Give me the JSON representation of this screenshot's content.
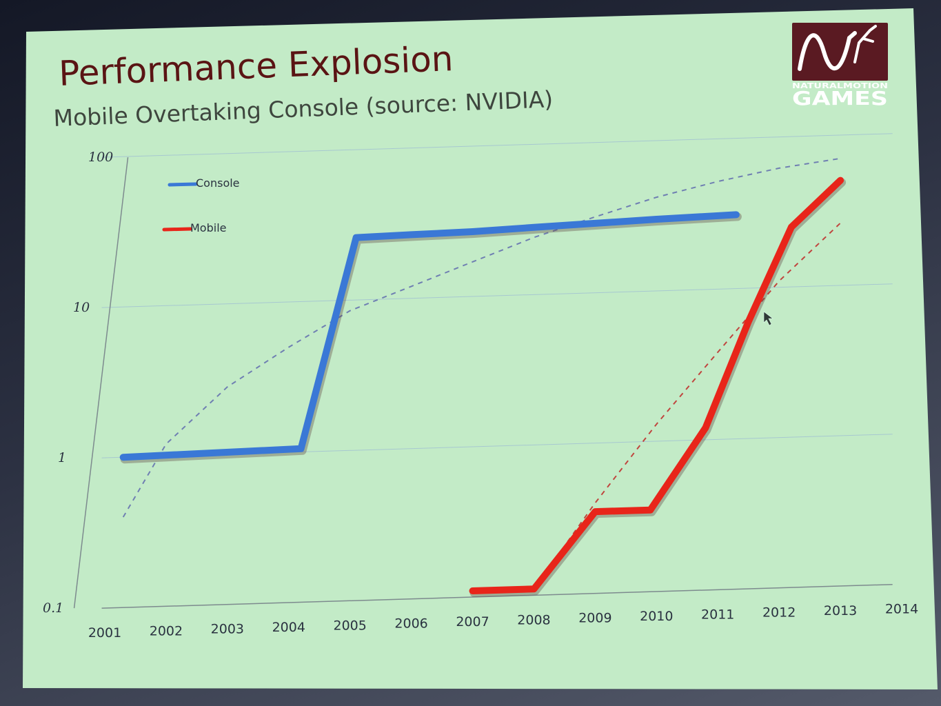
{
  "slide": {
    "title": "Performance Explosion",
    "subtitle": "Mobile Overtaking Console (source: NVIDIA)",
    "logo": {
      "top_text": "NATURALMOTION",
      "bottom_text": "GAMES",
      "icon": "wave-diver-icon",
      "color": "#5a1a22"
    }
  },
  "chart_data": {
    "type": "line",
    "yscale": "log",
    "ylim": [
      0.1,
      100
    ],
    "yticks": [
      "100",
      "10",
      "1",
      "0.1"
    ],
    "xlim": [
      2001,
      2014
    ],
    "categories": [
      "2001",
      "2002",
      "2003",
      "2004",
      "2005",
      "2006",
      "2007",
      "2008",
      "2009",
      "2010",
      "2011",
      "2012",
      "2013",
      "2014"
    ],
    "grid": true,
    "legend_position": "top-left",
    "series": [
      {
        "name": "Console",
        "color": "#3a78d6",
        "points": [
          [
            2001.3,
            1.0
          ],
          [
            2004.2,
            1.05
          ],
          [
            2005.1,
            26
          ],
          [
            2006,
            26.5
          ],
          [
            2007,
            27
          ],
          [
            2008,
            28
          ],
          [
            2009,
            29
          ],
          [
            2010,
            30
          ],
          [
            2011.3,
            31
          ]
        ]
      },
      {
        "name": "Mobile",
        "color": "#e8251a",
        "points": [
          [
            2007,
            0.11
          ],
          [
            2008,
            0.11
          ],
          [
            2009,
            0.35
          ],
          [
            2009.9,
            0.35
          ],
          [
            2010.8,
            1.2
          ],
          [
            2011.5,
            6
          ],
          [
            2012.2,
            25
          ],
          [
            2013,
            50
          ]
        ]
      }
    ],
    "trendlines": [
      {
        "series": "Console",
        "color": "#6f7fb2",
        "points": [
          [
            2001.3,
            0.4
          ],
          [
            2002,
            1.2
          ],
          [
            2003,
            2.8
          ],
          [
            2004,
            5
          ],
          [
            2005,
            8.5
          ],
          [
            2006,
            12
          ],
          [
            2007,
            17
          ],
          [
            2008,
            24
          ],
          [
            2009,
            32
          ],
          [
            2010,
            42
          ],
          [
            2011,
            52
          ],
          [
            2012,
            62
          ],
          [
            2013,
            70
          ]
        ]
      },
      {
        "series": "Mobile",
        "color": "#c0453e",
        "points": [
          [
            2008,
            0.11
          ],
          [
            2009,
            0.4
          ],
          [
            2010,
            1.3
          ],
          [
            2011,
            3.8
          ],
          [
            2012,
            11
          ],
          [
            2013,
            26
          ]
        ]
      }
    ]
  }
}
